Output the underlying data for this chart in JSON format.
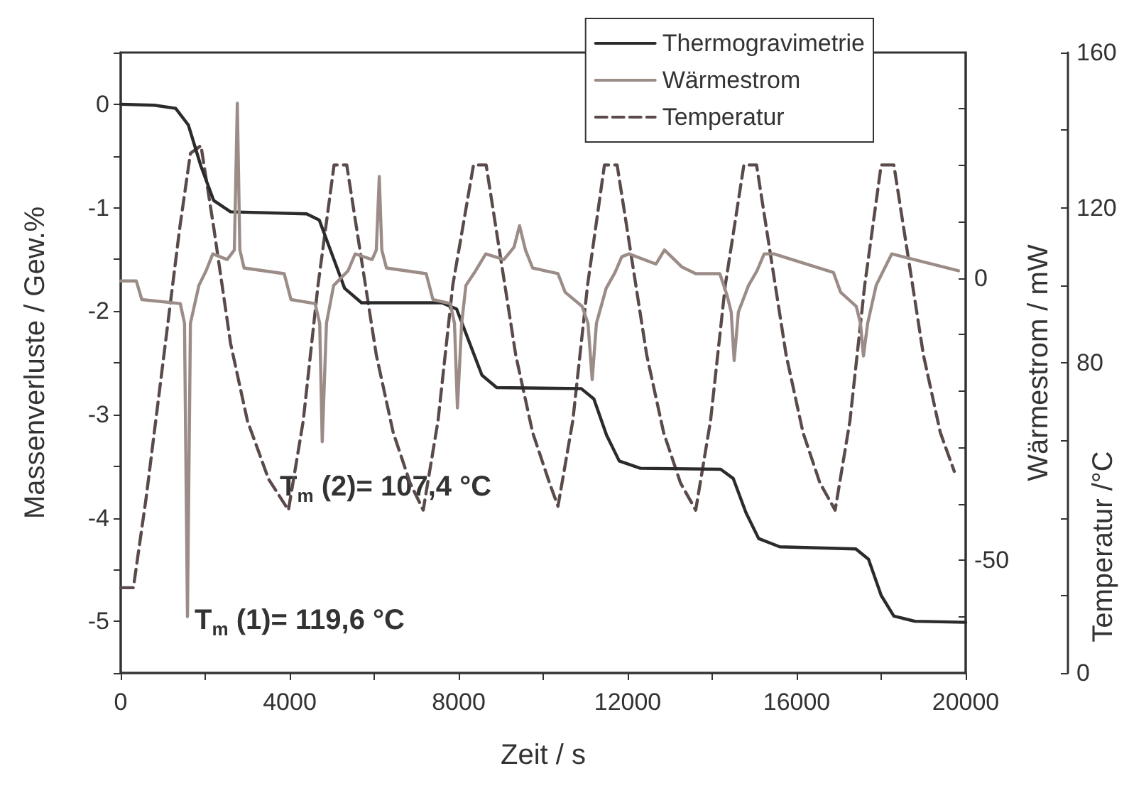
{
  "chart_data": {
    "type": "line",
    "xlabel": "Zeit / s",
    "ylabel": "Massenverluste / Gew.%",
    "y2label": "Wärmestrom / mW",
    "y3label": "Temperatur /°C",
    "xlim": [
      0,
      20000
    ],
    "xticks": [
      0,
      {
        "value": 2000,
        "label": null
      },
      4000,
      {
        "value": 6000,
        "label": null
      },
      8000,
      {
        "value": 10000,
        "label": null
      },
      12000,
      {
        "value": 14000,
        "label": null
      },
      16000,
      {
        "value": 18000,
        "label": null
      },
      20000
    ],
    "ylim": [
      -5.5,
      0.5
    ],
    "yticks": [
      {
        "value": -5.5,
        "label": null
      },
      -5,
      {
        "value": -4.5,
        "label": null
      },
      -4,
      {
        "value": -3.5,
        "label": null
      },
      -3,
      {
        "value": -2.5,
        "label": null
      },
      -2,
      {
        "value": -1.5,
        "label": null
      },
      -1,
      {
        "value": -0.5,
        "label": null
      },
      0,
      {
        "value": 0.5,
        "label": null
      }
    ],
    "y2lim": [
      -70,
      40
    ],
    "y2ticks": [
      {
        "value": -60,
        "label": null
      },
      -50,
      {
        "value": -40,
        "label": null
      },
      {
        "value": -30,
        "label": null
      },
      {
        "value": -20,
        "label": null
      },
      {
        "value": -10,
        "label": null
      },
      0,
      {
        "value": 10,
        "label": null
      },
      {
        "value": 20,
        "label": null
      },
      {
        "value": 30,
        "label": null
      }
    ],
    "y3lim": [
      0,
      160
    ],
    "y3ticks": [
      0,
      {
        "value": 40,
        "label": null
      },
      80,
      120,
      160
    ],
    "grid": false,
    "legend": "top right",
    "annotations": [
      "T$_{m}$ (1)= 119,6 °C",
      "T$_{m}$ (2)= 107,4 °C"
    ],
    "series": [
      {
        "name": "Thermogravimetrie",
        "color": "#2b2b2b",
        "x": [
          0,
          800,
          1300,
          1600,
          1900,
          2200,
          2600,
          4400,
          4700,
          5000,
          5300,
          5700,
          7600,
          7950,
          8250,
          8550,
          8900,
          10900,
          11200,
          11500,
          11800,
          12300,
          14200,
          14500,
          14800,
          15100,
          15600,
          17400,
          17700,
          18000,
          18300,
          18800,
          20000
        ],
        "values": [
          0,
          -0.01,
          -0.04,
          -0.2,
          -0.6,
          -0.93,
          -1.04,
          -1.06,
          -1.12,
          -1.45,
          -1.78,
          -1.92,
          -1.92,
          -1.98,
          -2.3,
          -2.62,
          -2.74,
          -2.75,
          -2.85,
          -3.2,
          -3.45,
          -3.52,
          -3.53,
          -3.62,
          -3.95,
          -4.2,
          -4.28,
          -4.3,
          -4.4,
          -4.75,
          -4.95,
          -5.0,
          -5.01
        ]
      },
      {
        "name": "Wärmestrom",
        "color": "#9b8c88",
        "axis": "y2",
        "x": [
          0,
          370,
          500,
          1410,
          1510,
          1580,
          1650,
          1850,
          2020,
          2180,
          2520,
          2690,
          2760,
          2820,
          2920,
          3870,
          4030,
          4600,
          4710,
          4770,
          4870,
          5040,
          5380,
          5550,
          5950,
          6050,
          6120,
          6180,
          6290,
          7230,
          7390,
          7800,
          7900,
          7970,
          8070,
          8170,
          8400,
          8640,
          9070,
          9310,
          9440,
          9580,
          9750,
          10350,
          10520,
          10920,
          11060,
          11160,
          11260,
          11490,
          11700,
          11860,
          12030,
          12670,
          12870,
          13280,
          13610,
          14180,
          14350,
          14450,
          14520,
          14620,
          14860,
          15060,
          15230,
          15460,
          16870,
          17040,
          17410,
          17510,
          17580,
          17680,
          17880,
          18050,
          18250,
          19830
        ],
        "values": [
          -0.5,
          -0.5,
          -3.8,
          -4.5,
          -8,
          -60,
          -8,
          -1.3,
          1.3,
          4.3,
          3.3,
          5,
          31,
          5,
          1.8,
          0.8,
          -3.8,
          -4.5,
          -8,
          -29,
          -8,
          -1.3,
          1.3,
          4.3,
          3.3,
          5,
          18,
          5,
          1.8,
          0.8,
          -3.8,
          -4.5,
          -8,
          -23,
          -8,
          -1.3,
          1.3,
          4.3,
          3.3,
          5.5,
          9.3,
          5,
          1.8,
          0.8,
          -2.5,
          -5,
          -8,
          -18,
          -8,
          -1.8,
          1,
          3.8,
          4.3,
          2.5,
          5,
          2,
          0.8,
          0.8,
          -3,
          -6,
          -14.6,
          -6,
          -1.3,
          1.3,
          4.3,
          4.3,
          1,
          -2.5,
          -5,
          -8,
          -13.8,
          -8,
          -1.3,
          1.3,
          4.3,
          1.3
        ]
      },
      {
        "name": "Temperatur",
        "color": "#5a4a4a",
        "axis": "y3",
        "line_style": "dashed",
        "x": [
          0,
          300,
          600,
          1000,
          1400,
          1650,
          1900,
          2200,
          2600,
          3000,
          3500,
          3970,
          4320,
          4670,
          5050,
          5350,
          5650,
          6050,
          6450,
          6850,
          7160,
          7510,
          7860,
          8350,
          8650,
          8950,
          9350,
          9750,
          10150,
          10350,
          10700,
          11050,
          11450,
          11750,
          12050,
          12450,
          12850,
          13250,
          13610,
          13960,
          14310,
          14750,
          15050,
          15350,
          15750,
          16150,
          16550,
          16910,
          17260,
          17610,
          18000,
          18300,
          18600,
          19000,
          19400,
          19730
        ],
        "values": [
          22,
          22,
          45,
          80,
          115,
          134,
          136,
          115,
          85,
          65,
          50,
          42,
          65,
          100,
          131,
          131,
          110,
          82,
          62,
          49,
          42,
          65,
          100,
          131,
          131,
          110,
          82,
          62,
          49,
          43,
          65,
          100,
          131,
          131,
          110,
          82,
          62,
          49,
          42,
          65,
          100,
          131,
          131,
          110,
          82,
          62,
          49,
          42,
          65,
          100,
          131,
          131,
          110,
          82,
          62,
          52
        ]
      }
    ]
  }
}
